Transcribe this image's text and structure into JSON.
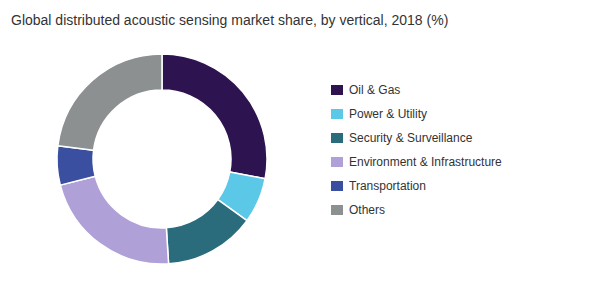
{
  "chart_data": {
    "type": "donut",
    "title": "Global distributed acoustic sensing market share, by vertical, 2018 (%)",
    "categories": [
      "Oil & Gas",
      "Power & Utility",
      "Security & Surveillance",
      "Environment & Infrastructure",
      "Transportation",
      "Others"
    ],
    "values": [
      28,
      7,
      14,
      22,
      6,
      23
    ],
    "colors": [
      "#2d1450",
      "#5bc8e8",
      "#2a6b7c",
      "#b0a0d8",
      "#3a4fa0",
      "#8c9090"
    ],
    "legend": "right"
  }
}
